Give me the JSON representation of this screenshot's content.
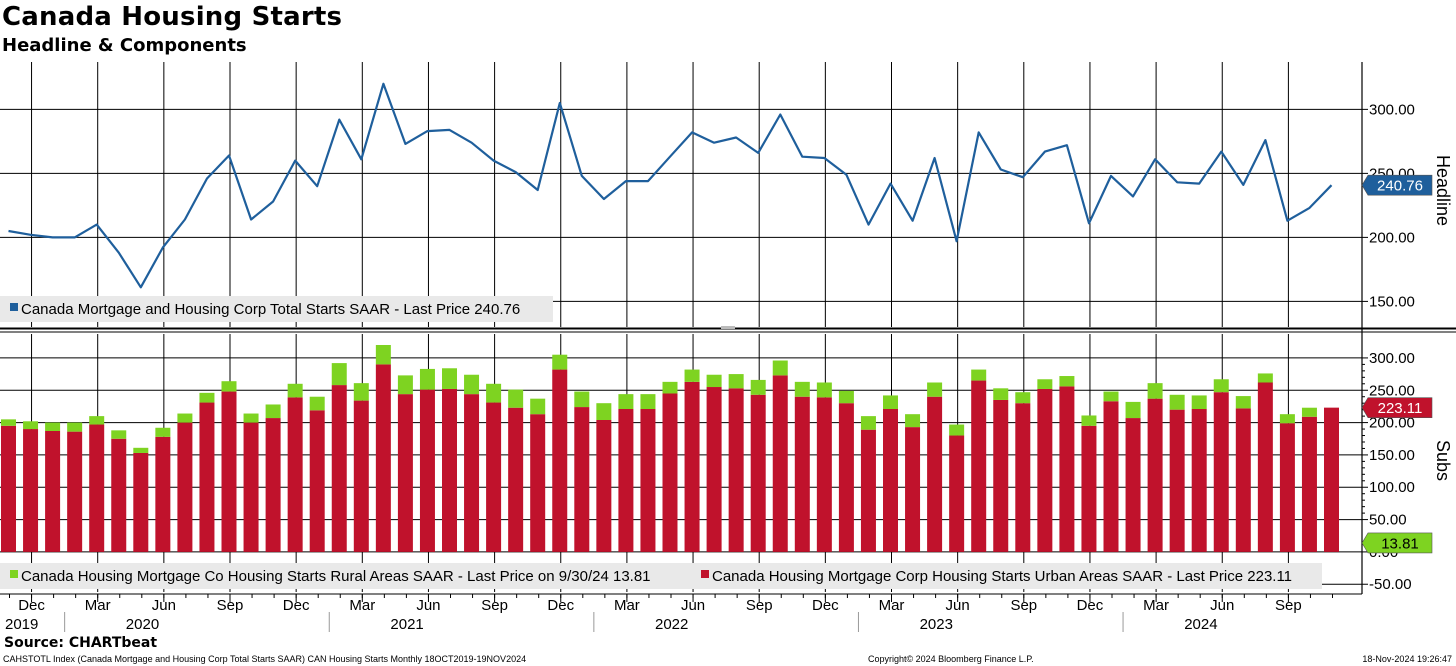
{
  "title": "Canada Housing Starts",
  "subtitle": "Headline & Components",
  "source": "Source: CHARTbeat",
  "footer": {
    "left": "CAHSTOTL Index (Canada Mortgage and Housing Corp Total Starts SAAR) CAN Housing Starts  Monthly 18OCT2019-19NOV2024",
    "middle": "Copyright© 2024 Bloomberg Finance L.P.",
    "right": "18-Nov-2024 19:26:47"
  },
  "colors": {
    "headline": "#1f5f9c",
    "urban": "#c0122c",
    "rural": "#7ed321",
    "grid": "#000000"
  },
  "time_axis": {
    "month_ticks": [
      {
        "label": "Dec",
        "index": 1
      },
      {
        "label": "Mar",
        "index": 4
      },
      {
        "label": "Jun",
        "index": 7
      },
      {
        "label": "Sep",
        "index": 10
      },
      {
        "label": "Dec",
        "index": 13
      },
      {
        "label": "Mar",
        "index": 16
      },
      {
        "label": "Jun",
        "index": 19
      },
      {
        "label": "Sep",
        "index": 22
      },
      {
        "label": "Dec",
        "index": 25
      },
      {
        "label": "Mar",
        "index": 28
      },
      {
        "label": "Jun",
        "index": 31
      },
      {
        "label": "Sep",
        "index": 34
      },
      {
        "label": "Dec",
        "index": 37
      },
      {
        "label": "Mar",
        "index": 40
      },
      {
        "label": "Jun",
        "index": 43
      },
      {
        "label": "Sep",
        "index": 46
      },
      {
        "label": "Dec",
        "index": 49
      },
      {
        "label": "Mar",
        "index": 52
      },
      {
        "label": "Jun",
        "index": 55
      },
      {
        "label": "Sep",
        "index": 58
      }
    ],
    "year_labels": [
      {
        "label": "2019",
        "index": 0
      },
      {
        "label": "2020",
        "index": 3
      },
      {
        "label": "2021",
        "index": 15
      },
      {
        "label": "2022",
        "index": 27
      },
      {
        "label": "2023",
        "index": 39
      },
      {
        "label": "2024",
        "index": 51
      }
    ]
  },
  "chart_data": [
    {
      "type": "line",
      "panel": "top",
      "axis_label": "Headline",
      "x": [
        "2019-10",
        "2019-11",
        "2019-12",
        "2020-01",
        "2020-02",
        "2020-03",
        "2020-04",
        "2020-05",
        "2020-06",
        "2020-07",
        "2020-08",
        "2020-09",
        "2020-10",
        "2020-11",
        "2020-12",
        "2021-01",
        "2021-02",
        "2021-03",
        "2021-04",
        "2021-05",
        "2021-06",
        "2021-07",
        "2021-08",
        "2021-09",
        "2021-10",
        "2021-11",
        "2021-12",
        "2022-01",
        "2022-02",
        "2022-03",
        "2022-04",
        "2022-05",
        "2022-06",
        "2022-07",
        "2022-08",
        "2022-09",
        "2022-10",
        "2022-11",
        "2022-12",
        "2023-01",
        "2023-02",
        "2023-03",
        "2023-04",
        "2023-05",
        "2023-06",
        "2023-07",
        "2023-08",
        "2023-09",
        "2023-10",
        "2023-11",
        "2023-12",
        "2024-01",
        "2024-02",
        "2024-03",
        "2024-04",
        "2024-05",
        "2024-06",
        "2024-07",
        "2024-08",
        "2024-09",
        "2024-10"
      ],
      "series": [
        {
          "name": "Canada Mortgage and Housing Corp Total Starts SAAR - Last Price 240.76",
          "values": [
            205,
            202,
            200,
            200,
            210,
            188,
            161,
            192,
            214,
            246,
            264,
            214,
            228,
            260,
            240,
            292,
            261,
            320,
            273,
            283,
            284,
            274,
            260,
            251,
            237,
            305,
            248,
            230,
            244,
            244,
            263,
            282,
            274,
            278,
            266,
            296,
            263,
            262,
            249,
            210,
            242,
            213,
            262,
            197,
            282,
            253,
            247,
            267,
            272,
            211,
            248,
            232,
            261,
            243,
            242,
            267,
            241,
            276,
            213,
            223,
            240.76
          ]
        }
      ],
      "ylim": [
        130,
        337
      ],
      "yticks": [
        "300.00",
        "250.00",
        "200.00",
        "150.00"
      ],
      "ytick_values": [
        300,
        250,
        200,
        150
      ],
      "last_value_label": "240.76"
    },
    {
      "type": "bar",
      "stacked": true,
      "panel": "bottom",
      "axis_label": "Subs",
      "x": [
        "2019-10",
        "2019-11",
        "2019-12",
        "2020-01",
        "2020-02",
        "2020-03",
        "2020-04",
        "2020-05",
        "2020-06",
        "2020-07",
        "2020-08",
        "2020-09",
        "2020-10",
        "2020-11",
        "2020-12",
        "2021-01",
        "2021-02",
        "2021-03",
        "2021-04",
        "2021-05",
        "2021-06",
        "2021-07",
        "2021-08",
        "2021-09",
        "2021-10",
        "2021-11",
        "2021-12",
        "2022-01",
        "2022-02",
        "2022-03",
        "2022-04",
        "2022-05",
        "2022-06",
        "2022-07",
        "2022-08",
        "2022-09",
        "2022-10",
        "2022-11",
        "2022-12",
        "2023-01",
        "2023-02",
        "2023-03",
        "2023-04",
        "2023-05",
        "2023-06",
        "2023-07",
        "2023-08",
        "2023-09",
        "2023-10",
        "2023-11",
        "2023-12",
        "2024-01",
        "2024-02",
        "2024-03",
        "2024-04",
        "2024-05",
        "2024-06",
        "2024-07",
        "2024-08",
        "2024-09",
        "2024-10"
      ],
      "series": [
        {
          "name": "Canada Housing Mortgage Corp Housing Starts Urban Areas SAAR - Last Price 223.11",
          "values": [
            195,
            190,
            187,
            186,
            197,
            175,
            153,
            178,
            200,
            231,
            248,
            200,
            207,
            239,
            219,
            258,
            234,
            290,
            244,
            251,
            252,
            244,
            231,
            223,
            213,
            282,
            224,
            204,
            221,
            221,
            245,
            263,
            255,
            253,
            243,
            273,
            240,
            239,
            230,
            189,
            221,
            193,
            240,
            180,
            265,
            235,
            230,
            252,
            256,
            195,
            233,
            207,
            237,
            220,
            221,
            247,
            222,
            262,
            199,
            209,
            223.11
          ]
        },
        {
          "name": "Canada Housing Mortgage Co Housing Starts Rural Areas SAAR - Last Price on 9/30/24 13.81",
          "values": [
            10,
            12,
            13,
            14,
            13,
            13,
            8,
            14,
            14,
            15,
            16,
            14,
            21,
            21,
            21,
            34,
            27,
            30,
            29,
            32,
            32,
            30,
            29,
            28,
            24,
            23,
            24,
            26,
            23,
            23,
            18,
            19,
            19,
            22,
            23,
            23,
            23,
            23,
            19,
            21,
            21,
            20,
            22,
            17,
            17,
            18,
            17,
            15,
            16,
            16,
            15,
            25,
            24,
            23,
            21,
            20,
            19,
            14,
            14,
            14,
            0
          ]
        }
      ],
      "ylim": [
        -62,
        337
      ],
      "yticks": [
        "300.00",
        "250.00",
        "200.00",
        "150.00",
        "100.00",
        "50.00",
        "0.00",
        "-50.00"
      ],
      "ytick_values": [
        300,
        250,
        200,
        150,
        100,
        50,
        0,
        -50
      ],
      "last_value_labels": [
        "223.11",
        "13.81"
      ]
    }
  ]
}
